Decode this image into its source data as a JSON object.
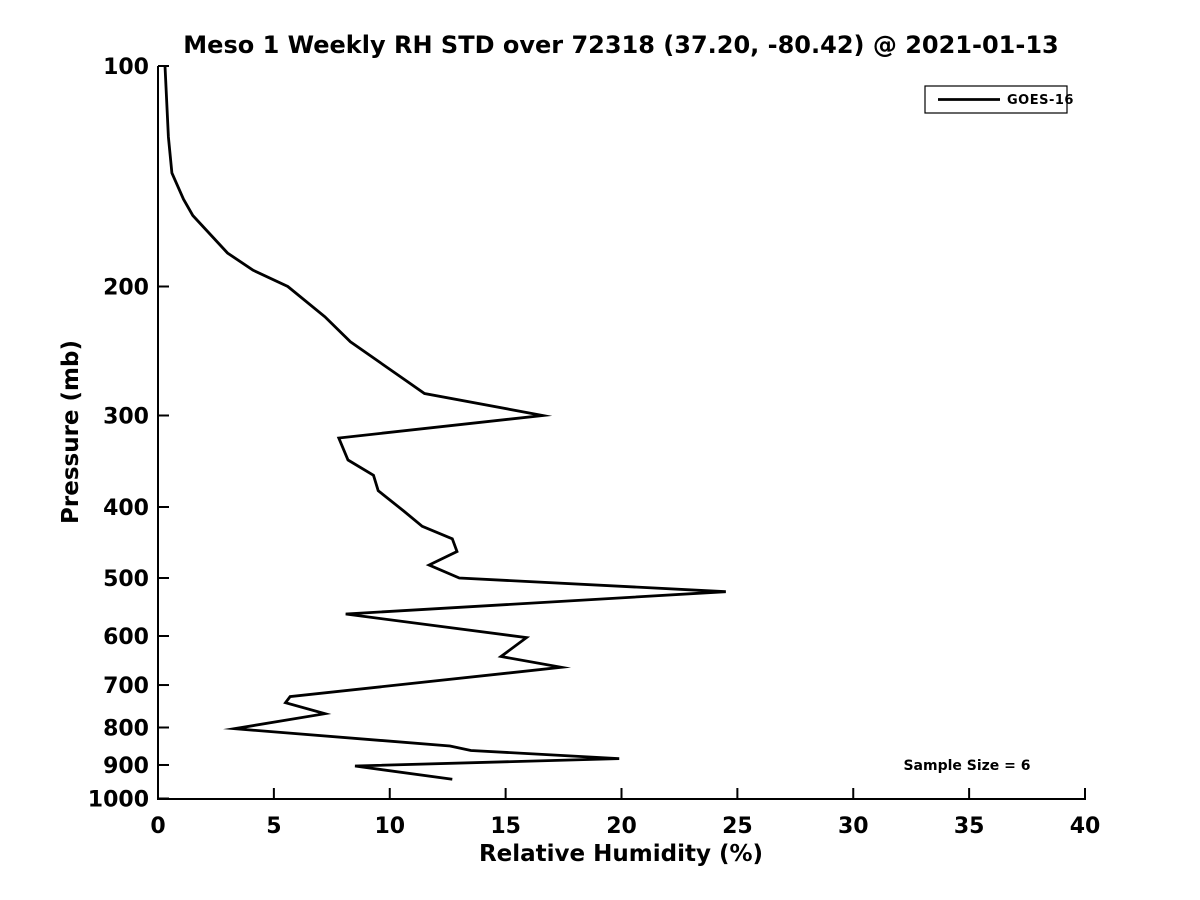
{
  "chart_data": {
    "type": "line",
    "title": "Meso 1 Weekly RH STD over 72318 (37.20, -80.42) @ 2021-01-13",
    "xlabel": "Relative Humidity (%)",
    "ylabel": "Pressure (mb)",
    "xlim": [
      0,
      40
    ],
    "x_ticks": [
      0,
      5,
      10,
      15,
      20,
      25,
      30,
      35,
      40
    ],
    "ylim": [
      100,
      1000
    ],
    "y_ticks": [
      100,
      200,
      300,
      400,
      500,
      600,
      700,
      800,
      900,
      1000
    ],
    "y_scale": "log",
    "y_axis_inverted": true,
    "grid": false,
    "line_color": "#000000",
    "background_color": "#ffffff",
    "legend": {
      "position": "top-right",
      "entries": [
        {
          "label": "GOES-16",
          "color": "#000000"
        }
      ]
    },
    "annotation": "Sample Size = 6",
    "sample_size": 6,
    "series": [
      {
        "name": "GOES-16",
        "color": "#000000",
        "points_format": [
          "pressure_mb",
          "rh_std_percent"
        ],
        "points": [
          [
            100,
            0.3
          ],
          [
            125,
            0.45
          ],
          [
            140,
            0.6
          ],
          [
            152,
            1.1
          ],
          [
            160,
            1.5
          ],
          [
            180,
            3.0
          ],
          [
            190,
            4.1
          ],
          [
            200,
            5.6
          ],
          [
            220,
            7.2
          ],
          [
            238,
            8.3
          ],
          [
            280,
            11.5
          ],
          [
            300,
            16.6
          ],
          [
            322,
            7.8
          ],
          [
            345,
            8.2
          ],
          [
            362,
            9.3
          ],
          [
            380,
            9.5
          ],
          [
            405,
            10.6
          ],
          [
            425,
            11.4
          ],
          [
            442,
            12.7
          ],
          [
            460,
            12.9
          ],
          [
            480,
            11.7
          ],
          [
            500,
            13.0
          ],
          [
            522,
            24.5
          ],
          [
            560,
            8.1
          ],
          [
            603,
            15.9
          ],
          [
            640,
            14.8
          ],
          [
            662,
            17.4
          ],
          [
            726,
            5.7
          ],
          [
            740,
            5.5
          ],
          [
            766,
            7.2
          ],
          [
            803,
            3.3
          ],
          [
            848,
            12.6
          ],
          [
            860,
            13.5
          ],
          [
            882,
            19.9
          ],
          [
            903,
            8.5
          ],
          [
            941,
            12.7
          ]
        ]
      }
    ]
  }
}
